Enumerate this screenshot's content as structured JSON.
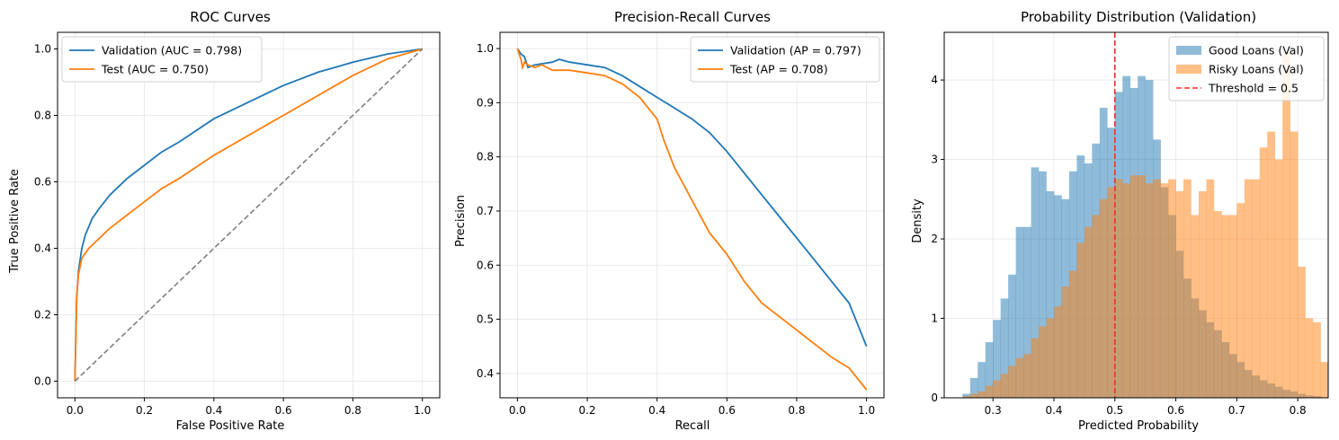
{
  "chart_data": [
    {
      "type": "line",
      "title": "ROC Curves",
      "xlabel": "False Positive Rate",
      "ylabel": "True Positive Rate",
      "xlim": [
        -0.05,
        1.05
      ],
      "ylim": [
        -0.05,
        1.05
      ],
      "xticks": [
        "0.0",
        "0.2",
        "0.4",
        "0.6",
        "0.8",
        "1.0"
      ],
      "yticks": [
        "0.0",
        "0.2",
        "0.4",
        "0.6",
        "0.8",
        "1.0"
      ],
      "grid": true,
      "legend_position": "top-left",
      "series": [
        {
          "name": "Validation (AUC = 0.798)",
          "color": "#1f77b4",
          "style": "solid",
          "x": [
            0,
            0.005,
            0.01,
            0.02,
            0.03,
            0.05,
            0.07,
            0.1,
            0.15,
            0.2,
            0.25,
            0.3,
            0.4,
            0.5,
            0.6,
            0.7,
            0.8,
            0.9,
            1.0
          ],
          "y": [
            0,
            0.25,
            0.33,
            0.4,
            0.44,
            0.49,
            0.52,
            0.56,
            0.61,
            0.65,
            0.69,
            0.72,
            0.79,
            0.84,
            0.89,
            0.93,
            0.96,
            0.985,
            1.0
          ]
        },
        {
          "name": "Test (AUC = 0.750)",
          "color": "#ff7f0e",
          "style": "solid",
          "x": [
            0,
            0.005,
            0.01,
            0.02,
            0.04,
            0.06,
            0.1,
            0.15,
            0.2,
            0.25,
            0.3,
            0.4,
            0.5,
            0.6,
            0.7,
            0.8,
            0.9,
            1.0
          ],
          "y": [
            0,
            0.25,
            0.32,
            0.37,
            0.4,
            0.42,
            0.46,
            0.5,
            0.54,
            0.58,
            0.61,
            0.68,
            0.74,
            0.8,
            0.86,
            0.92,
            0.97,
            1.0
          ]
        },
        {
          "name": "",
          "color": "#808080",
          "style": "dashed",
          "x": [
            0,
            1
          ],
          "y": [
            0,
            1
          ]
        }
      ]
    },
    {
      "type": "line",
      "title": "Precision-Recall Curves",
      "xlabel": "Recall",
      "ylabel": "Precision",
      "xlim": [
        -0.05,
        1.05
      ],
      "ylim": [
        0.355,
        1.03
      ],
      "xticks": [
        "0.0",
        "0.2",
        "0.4",
        "0.6",
        "0.8",
        "1.0"
      ],
      "yticks": [
        "0.4",
        "0.5",
        "0.6",
        "0.7",
        "0.8",
        "0.9",
        "1.0"
      ],
      "grid": true,
      "legend_position": "top-right",
      "series": [
        {
          "name": "Validation (AP = 0.797)",
          "color": "#1f77b4",
          "style": "solid",
          "x": [
            0,
            0.01,
            0.02,
            0.03,
            0.05,
            0.1,
            0.12,
            0.15,
            0.2,
            0.25,
            0.3,
            0.35,
            0.4,
            0.45,
            0.5,
            0.55,
            0.6,
            0.65,
            0.7,
            0.75,
            0.8,
            0.85,
            0.9,
            0.95,
            1.0
          ],
          "y": [
            1.0,
            0.99,
            0.985,
            0.965,
            0.97,
            0.975,
            0.98,
            0.975,
            0.97,
            0.965,
            0.95,
            0.93,
            0.91,
            0.89,
            0.87,
            0.845,
            0.81,
            0.77,
            0.73,
            0.69,
            0.65,
            0.61,
            0.57,
            0.53,
            0.45
          ]
        },
        {
          "name": "Test (AP = 0.708)",
          "color": "#ff7f0e",
          "style": "solid",
          "x": [
            0,
            0.01,
            0.015,
            0.02,
            0.03,
            0.05,
            0.07,
            0.1,
            0.15,
            0.2,
            0.25,
            0.3,
            0.35,
            0.4,
            0.42,
            0.45,
            0.5,
            0.55,
            0.6,
            0.65,
            0.7,
            0.8,
            0.9,
            0.95,
            1.0
          ],
          "y": [
            1.0,
            0.98,
            0.965,
            0.975,
            0.97,
            0.965,
            0.97,
            0.96,
            0.96,
            0.955,
            0.95,
            0.935,
            0.91,
            0.87,
            0.83,
            0.78,
            0.72,
            0.66,
            0.62,
            0.57,
            0.53,
            0.48,
            0.43,
            0.41,
            0.37
          ]
        }
      ]
    },
    {
      "type": "histogram",
      "title": "Probability Distribution (Validation)",
      "xlabel": "Predicted Probability",
      "ylabel": "Density",
      "xlim": [
        0.22,
        0.85
      ],
      "ylim": [
        0,
        4.6
      ],
      "xticks": [
        "0.3",
        "0.4",
        "0.5",
        "0.6",
        "0.7",
        "0.8"
      ],
      "yticks": [
        "0",
        "1",
        "2",
        "3",
        "4"
      ],
      "grid": true,
      "legend_position": "top-right",
      "series": [
        {
          "name": "Good Loans (Val)",
          "color": "#1f77b4",
          "opacity": 0.5,
          "bin_start": 0.25,
          "bin_width": 0.0125,
          "values": [
            0.05,
            0.25,
            0.45,
            0.7,
            0.98,
            1.25,
            1.55,
            2.15,
            2.15,
            2.9,
            2.85,
            2.6,
            2.55,
            2.5,
            2.85,
            3.05,
            2.95,
            3.2,
            3.65,
            3.4,
            3.85,
            4.05,
            3.9,
            4.05,
            4.0,
            3.25,
            2.65,
            2.3,
            1.85,
            1.5,
            1.25,
            1.1,
            0.95,
            0.85,
            0.7,
            0.55,
            0.45,
            0.35,
            0.28,
            0.22,
            0.18,
            0.14,
            0.1,
            0.08,
            0.05,
            0.03,
            0.02
          ]
        },
        {
          "name": "Risky Loans (Val)",
          "color": "#ff7f0e",
          "opacity": 0.5,
          "bin_start": 0.25,
          "bin_width": 0.0125,
          "values": [
            0.02,
            0.05,
            0.08,
            0.15,
            0.22,
            0.3,
            0.4,
            0.5,
            0.55,
            0.75,
            0.9,
            1.0,
            1.15,
            1.4,
            1.6,
            1.95,
            2.15,
            2.3,
            2.5,
            2.65,
            2.75,
            2.7,
            2.8,
            2.8,
            2.7,
            2.75,
            2.7,
            2.75,
            2.6,
            2.75,
            2.3,
            2.6,
            2.75,
            2.35,
            2.3,
            2.3,
            2.45,
            2.75,
            2.75,
            3.15,
            3.35,
            3.0,
            4.35,
            3.35,
            1.65,
            1.0,
            0.95,
            0.45
          ]
        }
      ],
      "threshold": {
        "label": "Threshold = 0.5",
        "value": 0.5,
        "color": "#e8302e"
      }
    }
  ]
}
